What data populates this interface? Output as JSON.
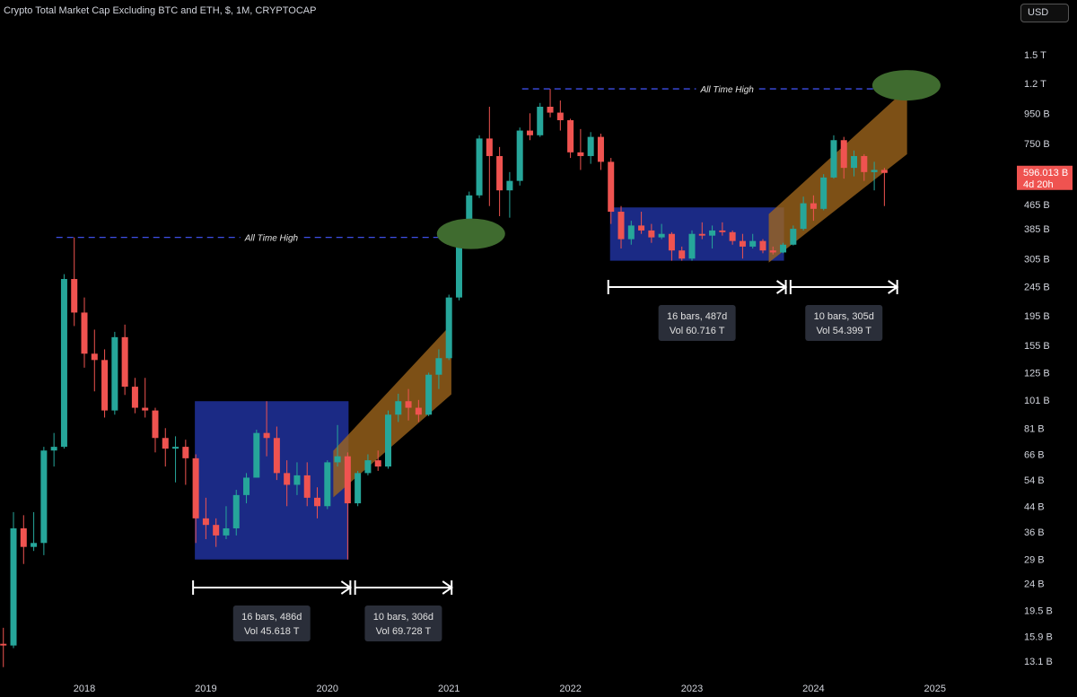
{
  "header": {
    "title": "Crypto Total Market Cap Excluding BTC and ETH, $, 1M, CRYPTOCAP",
    "currency": "USD"
  },
  "colors": {
    "background": "#000000",
    "bull": "#26a69a",
    "bear": "#ef5350",
    "range_box": "#1c2c8c",
    "channel": "#a0661c",
    "ath_line": "#3d4ee6",
    "ath_marker": "#3f6b2f",
    "last_price_bg": "#ef5350"
  },
  "chart_data": {
    "type": "candlestick",
    "interval": "1M",
    "y_scale": "log",
    "y_ticks": [
      "1.5 T",
      "1.2 T",
      "950 B",
      "750 B",
      "596.013 B",
      "465 B",
      "385 B",
      "305 B",
      "245 B",
      "195 B",
      "155 B",
      "125 B",
      "101 B",
      "81 B",
      "66 B",
      "54 B",
      "44 B",
      "36 B",
      "29 B",
      "24 B",
      "19.5 B",
      "15.9 B",
      "13.1 B"
    ],
    "x_ticks": [
      "2018",
      "2019",
      "2020",
      "2021",
      "2022",
      "2023",
      "2024",
      "2025"
    ],
    "last_price": {
      "value": "596.013 B",
      "countdown": "4d 20h"
    },
    "candles": [
      {
        "date": "2017-05",
        "o": 15.0,
        "h": 17.0,
        "l": 12.5,
        "c": 14.8
      },
      {
        "date": "2017-06",
        "o": 14.8,
        "h": 42.0,
        "l": 14.5,
        "c": 37.0
      },
      {
        "date": "2017-07",
        "o": 37.0,
        "h": 41.0,
        "l": 28.0,
        "c": 32.0
      },
      {
        "date": "2017-08",
        "o": 32.0,
        "h": 42.0,
        "l": 31.0,
        "c": 33.0
      },
      {
        "date": "2017-09",
        "o": 33.0,
        "h": 70.0,
        "l": 30.0,
        "c": 68.0
      },
      {
        "date": "2017-10",
        "o": 68.0,
        "h": 78.0,
        "l": 60.0,
        "c": 70.0
      },
      {
        "date": "2017-11",
        "o": 70.0,
        "h": 270.0,
        "l": 69.0,
        "c": 260.0
      },
      {
        "date": "2017-12",
        "o": 260.0,
        "h": 360.0,
        "l": 180.0,
        "c": 200.0
      },
      {
        "date": "2018-01",
        "o": 200.0,
        "h": 225.0,
        "l": 130.0,
        "c": 145.0
      },
      {
        "date": "2018-02",
        "o": 145.0,
        "h": 175.0,
        "l": 108.0,
        "c": 138.0
      },
      {
        "date": "2018-03",
        "o": 138.0,
        "h": 150.0,
        "l": 88.0,
        "c": 93.0
      },
      {
        "date": "2018-04",
        "o": 93.0,
        "h": 172.0,
        "l": 90.0,
        "c": 165.0
      },
      {
        "date": "2018-05",
        "o": 165.0,
        "h": 182.0,
        "l": 105.0,
        "c": 112.0
      },
      {
        "date": "2018-06",
        "o": 112.0,
        "h": 120.0,
        "l": 91.0,
        "c": 95.0
      },
      {
        "date": "2018-07",
        "o": 95.0,
        "h": 120.0,
        "l": 88.0,
        "c": 93.0
      },
      {
        "date": "2018-08",
        "o": 93.0,
        "h": 95.0,
        "l": 67.0,
        "c": 75.0
      },
      {
        "date": "2018-09",
        "o": 75.0,
        "h": 81.0,
        "l": 60.0,
        "c": 69.0
      },
      {
        "date": "2018-10",
        "o": 69.0,
        "h": 76.0,
        "l": 53.0,
        "c": 70.0
      },
      {
        "date": "2018-11",
        "o": 70.0,
        "h": 74.0,
        "l": 52.0,
        "c": 64.0
      },
      {
        "date": "2018-12",
        "o": 64.0,
        "h": 66.0,
        "l": 33.0,
        "c": 40.0
      },
      {
        "date": "2019-01",
        "o": 40.0,
        "h": 47.0,
        "l": 34.0,
        "c": 38.0
      },
      {
        "date": "2019-02",
        "o": 38.0,
        "h": 40.0,
        "l": 32.0,
        "c": 35.0
      },
      {
        "date": "2019-03",
        "o": 35.0,
        "h": 44.0,
        "l": 34.0,
        "c": 37.0
      },
      {
        "date": "2019-04",
        "o": 37.0,
        "h": 50.0,
        "l": 35.0,
        "c": 48.0
      },
      {
        "date": "2019-05",
        "o": 48.0,
        "h": 57.0,
        "l": 45.0,
        "c": 55.0
      },
      {
        "date": "2019-06",
        "o": 55.0,
        "h": 80.0,
        "l": 55.0,
        "c": 78.0
      },
      {
        "date": "2019-07",
        "o": 78.0,
        "h": 100.0,
        "l": 65.0,
        "c": 75.0
      },
      {
        "date": "2019-08",
        "o": 75.0,
        "h": 82.0,
        "l": 54.0,
        "c": 57.0
      },
      {
        "date": "2019-09",
        "o": 57.0,
        "h": 63.0,
        "l": 44.0,
        "c": 52.0
      },
      {
        "date": "2019-10",
        "o": 52.0,
        "h": 62.0,
        "l": 48.0,
        "c": 56.0
      },
      {
        "date": "2019-11",
        "o": 56.0,
        "h": 62.0,
        "l": 44.0,
        "c": 47.0
      },
      {
        "date": "2019-12",
        "o": 47.0,
        "h": 51.0,
        "l": 40.0,
        "c": 44.0
      },
      {
        "date": "2020-01",
        "o": 44.0,
        "h": 63.0,
        "l": 43.0,
        "c": 62.0
      },
      {
        "date": "2020-02",
        "o": 62.0,
        "h": 83.0,
        "l": 60.0,
        "c": 65.0
      },
      {
        "date": "2020-03",
        "o": 65.0,
        "h": 67.0,
        "l": 29.0,
        "c": 45.0
      },
      {
        "date": "2020-04",
        "o": 45.0,
        "h": 58.0,
        "l": 44.0,
        "c": 57.0
      },
      {
        "date": "2020-05",
        "o": 57.0,
        "h": 66.0,
        "l": 56.0,
        "c": 63.0
      },
      {
        "date": "2020-06",
        "o": 63.0,
        "h": 68.0,
        "l": 58.0,
        "c": 60.0
      },
      {
        "date": "2020-07",
        "o": 60.0,
        "h": 93.0,
        "l": 59.0,
        "c": 90.0
      },
      {
        "date": "2020-08",
        "o": 90.0,
        "h": 106.0,
        "l": 85.0,
        "c": 100.0
      },
      {
        "date": "2020-09",
        "o": 100.0,
        "h": 110.0,
        "l": 86.0,
        "c": 95.0
      },
      {
        "date": "2020-10",
        "o": 95.0,
        "h": 101.0,
        "l": 85.0,
        "c": 90.0
      },
      {
        "date": "2020-11",
        "o": 90.0,
        "h": 125.0,
        "l": 89.0,
        "c": 123.0
      },
      {
        "date": "2020-12",
        "o": 123.0,
        "h": 150.0,
        "l": 110.0,
        "c": 140.0
      },
      {
        "date": "2021-01",
        "o": 140.0,
        "h": 230.0,
        "l": 138.0,
        "c": 225.0
      },
      {
        "date": "2021-02",
        "o": 225.0,
        "h": 370.0,
        "l": 220.0,
        "c": 365.0
      },
      {
        "date": "2021-03",
        "o": 365.0,
        "h": 515.0,
        "l": 330.0,
        "c": 500.0
      },
      {
        "date": "2021-04",
        "o": 500.0,
        "h": 800.0,
        "l": 490.0,
        "c": 780.0
      },
      {
        "date": "2021-05",
        "o": 780.0,
        "h": 1000.0,
        "l": 460.0,
        "c": 680.0
      },
      {
        "date": "2021-06",
        "o": 680.0,
        "h": 730.0,
        "l": 425.0,
        "c": 520.0
      },
      {
        "date": "2021-07",
        "o": 520.0,
        "h": 600.0,
        "l": 420.0,
        "c": 560.0
      },
      {
        "date": "2021-08",
        "o": 560.0,
        "h": 850.0,
        "l": 540.0,
        "c": 830.0
      },
      {
        "date": "2021-09",
        "o": 830.0,
        "h": 950.0,
        "l": 770.0,
        "c": 800.0
      },
      {
        "date": "2021-10",
        "o": 800.0,
        "h": 1030.0,
        "l": 790.0,
        "c": 1000.0
      },
      {
        "date": "2021-11",
        "o": 1000.0,
        "h": 1150.0,
        "l": 920.0,
        "c": 955.0
      },
      {
        "date": "2021-12",
        "o": 955.0,
        "h": 1050.0,
        "l": 830.0,
        "c": 900.0
      },
      {
        "date": "2022-01",
        "o": 900.0,
        "h": 910.0,
        "l": 670.0,
        "c": 700.0
      },
      {
        "date": "2022-02",
        "o": 700.0,
        "h": 840.0,
        "l": 610.0,
        "c": 680.0
      },
      {
        "date": "2022-03",
        "o": 680.0,
        "h": 820.0,
        "l": 640.0,
        "c": 790.0
      },
      {
        "date": "2022-04",
        "o": 790.0,
        "h": 810.0,
        "l": 610.0,
        "c": 650.0
      },
      {
        "date": "2022-05",
        "o": 650.0,
        "h": 670.0,
        "l": 400.0,
        "c": 440.0
      },
      {
        "date": "2022-06",
        "o": 440.0,
        "h": 460.0,
        "l": 330.0,
        "c": 355.0
      },
      {
        "date": "2022-07",
        "o": 355.0,
        "h": 410.0,
        "l": 340.0,
        "c": 395.0
      },
      {
        "date": "2022-08",
        "o": 395.0,
        "h": 440.0,
        "l": 370.0,
        "c": 380.0
      },
      {
        "date": "2022-09",
        "o": 380.0,
        "h": 400.0,
        "l": 345.0,
        "c": 360.0
      },
      {
        "date": "2022-10",
        "o": 360.0,
        "h": 400.0,
        "l": 355.0,
        "c": 370.0
      },
      {
        "date": "2022-11",
        "o": 370.0,
        "h": 375.0,
        "l": 300.0,
        "c": 325.0
      },
      {
        "date": "2022-12",
        "o": 325.0,
        "h": 335.0,
        "l": 300.0,
        "c": 305.0
      },
      {
        "date": "2023-01",
        "o": 305.0,
        "h": 380.0,
        "l": 300.0,
        "c": 370.0
      },
      {
        "date": "2023-02",
        "o": 370.0,
        "h": 405.0,
        "l": 355.0,
        "c": 365.0
      },
      {
        "date": "2023-03",
        "o": 365.0,
        "h": 395.0,
        "l": 330.0,
        "c": 380.0
      },
      {
        "date": "2023-04",
        "o": 380.0,
        "h": 405.0,
        "l": 365.0,
        "c": 375.0
      },
      {
        "date": "2023-05",
        "o": 375.0,
        "h": 380.0,
        "l": 340.0,
        "c": 350.0
      },
      {
        "date": "2023-06",
        "o": 350.0,
        "h": 370.0,
        "l": 305.0,
        "c": 335.0
      },
      {
        "date": "2023-07",
        "o": 335.0,
        "h": 370.0,
        "l": 330.0,
        "c": 350.0
      },
      {
        "date": "2023-08",
        "o": 350.0,
        "h": 355.0,
        "l": 318.0,
        "c": 325.0
      },
      {
        "date": "2023-09",
        "o": 325.0,
        "h": 335.0,
        "l": 315.0,
        "c": 320.0
      },
      {
        "date": "2023-10",
        "o": 320.0,
        "h": 345.0,
        "l": 318.0,
        "c": 340.0
      },
      {
        "date": "2023-11",
        "o": 340.0,
        "h": 395.0,
        "l": 338.0,
        "c": 385.0
      },
      {
        "date": "2023-12",
        "o": 385.0,
        "h": 495.0,
        "l": 380.0,
        "c": 470.0
      },
      {
        "date": "2024-01",
        "o": 470.0,
        "h": 500.0,
        "l": 410.0,
        "c": 450.0
      },
      {
        "date": "2024-02",
        "o": 450.0,
        "h": 590.0,
        "l": 445.0,
        "c": 575.0
      },
      {
        "date": "2024-03",
        "o": 575.0,
        "h": 800.0,
        "l": 570.0,
        "c": 770.0
      },
      {
        "date": "2024-04",
        "o": 770.0,
        "h": 790.0,
        "l": 570.0,
        "c": 620.0
      },
      {
        "date": "2024-05",
        "o": 620.0,
        "h": 710.0,
        "l": 580.0,
        "c": 680.0
      },
      {
        "date": "2024-06",
        "o": 680.0,
        "h": 690.0,
        "l": 560.0,
        "c": 600.0
      },
      {
        "date": "2024-07",
        "o": 600.0,
        "h": 650.0,
        "l": 520.0,
        "c": 610.0
      },
      {
        "date": "2024-08",
        "o": 610.0,
        "h": 620.0,
        "l": 460.0,
        "c": 596.013
      }
    ],
    "annotations": {
      "ath_lines": [
        {
          "label": "All Time High",
          "value": 360.0,
          "from": "2017-12",
          "to": "2021-03"
        },
        {
          "label": "All Time High",
          "value": 1150.0,
          "from": "2021-10",
          "to": "2024-11"
        }
      ],
      "ath_markers": [
        {
          "date": "2021-03",
          "value": 360.0
        },
        {
          "date": "2024-10",
          "value": 1150.0
        }
      ],
      "range_boxes": [
        {
          "from": "2018-12",
          "to": "2020-03",
          "low": 29.0,
          "high": 100.0
        },
        {
          "from": "2022-05",
          "to": "2023-10",
          "low": 300.0,
          "high": 455.0
        }
      ],
      "channels": [
        {
          "from": "2020-03",
          "to": "2020-12",
          "low_start": 55.0,
          "high_start": 66.0,
          "low_end": 110.0,
          "high_end": 150.0
        },
        {
          "from": "2023-10",
          "to": "2024-09",
          "low_start": 345.0,
          "high_start": 420.0,
          "low_end": 720.0,
          "high_end": 950.0
        }
      ],
      "measures": [
        {
          "from": "2018-12",
          "to": "2020-03",
          "bars_text": "16 bars, 486d",
          "vol_text": "Vol 45.618 T"
        },
        {
          "from": "2020-04",
          "to": "2021-01",
          "bars_text": "10 bars, 306d",
          "vol_text": "Vol 69.728 T"
        },
        {
          "from": "2022-05",
          "to": "2023-10",
          "bars_text": "16 bars, 487d",
          "vol_text": "Vol 60.716 T"
        },
        {
          "from": "2023-11",
          "to": "2024-09",
          "bars_text": "10 bars, 305d",
          "vol_text": "Vol 54.399 T"
        }
      ]
    }
  }
}
